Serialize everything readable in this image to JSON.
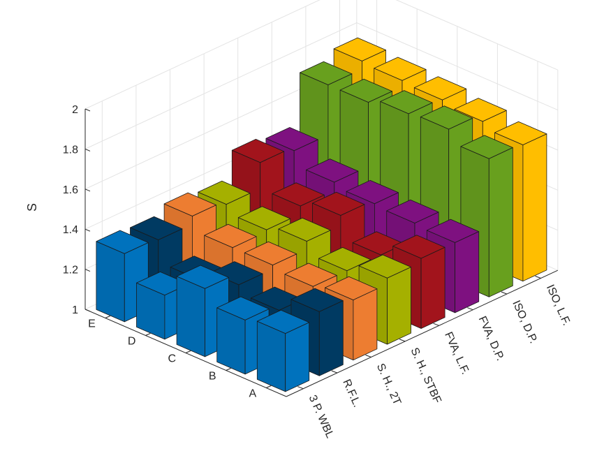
{
  "chart_data": {
    "type": "bar",
    "title": "",
    "zlabel": "S",
    "zlim": [
      1,
      2
    ],
    "z_ticks": [
      "1",
      "1.2",
      "1.4",
      "1.6",
      "1.8",
      "2"
    ],
    "grid": true,
    "legend": "none",
    "rows": [
      "A",
      "B",
      "C",
      "D",
      "E"
    ],
    "series": [
      {
        "label": "3 P. WBL",
        "color": "#0072BD",
        "values": [
          1.29,
          1.27,
          1.34,
          1.22,
          1.34
        ]
      },
      {
        "label": "R.F.L.",
        "color": "#003A62",
        "values": [
          1.32,
          1.24,
          1.28,
          1.22,
          1.33
        ]
      },
      {
        "label": "S. H., 2T",
        "color": "#ED7D31",
        "values": [
          1.3,
          1.28,
          1.3,
          1.3,
          1.37
        ]
      },
      {
        "label": "S. H., STBF",
        "color": "#A5B000",
        "values": [
          1.33,
          1.28,
          1.34,
          1.31,
          1.35
        ]
      },
      {
        "label": "FVA, L.F.",
        "color": "#A2141C",
        "values": [
          1.35,
          1.28,
          1.39,
          1.35,
          1.48
        ]
      },
      {
        "label": "FVA, D.P.",
        "color": "#7E1180",
        "values": [
          1.35,
          1.36,
          1.37,
          1.39,
          1.46
        ]
      },
      {
        "label": "ISO, D.P.",
        "color": "#68A01E",
        "values": [
          1.69,
          1.75,
          1.74,
          1.71,
          1.71
        ]
      },
      {
        "label": "ISO, L.F.",
        "color": "#FFBE00",
        "values": [
          1.68,
          1.71,
          1.73,
          1.74,
          1.75
        ]
      }
    ]
  }
}
